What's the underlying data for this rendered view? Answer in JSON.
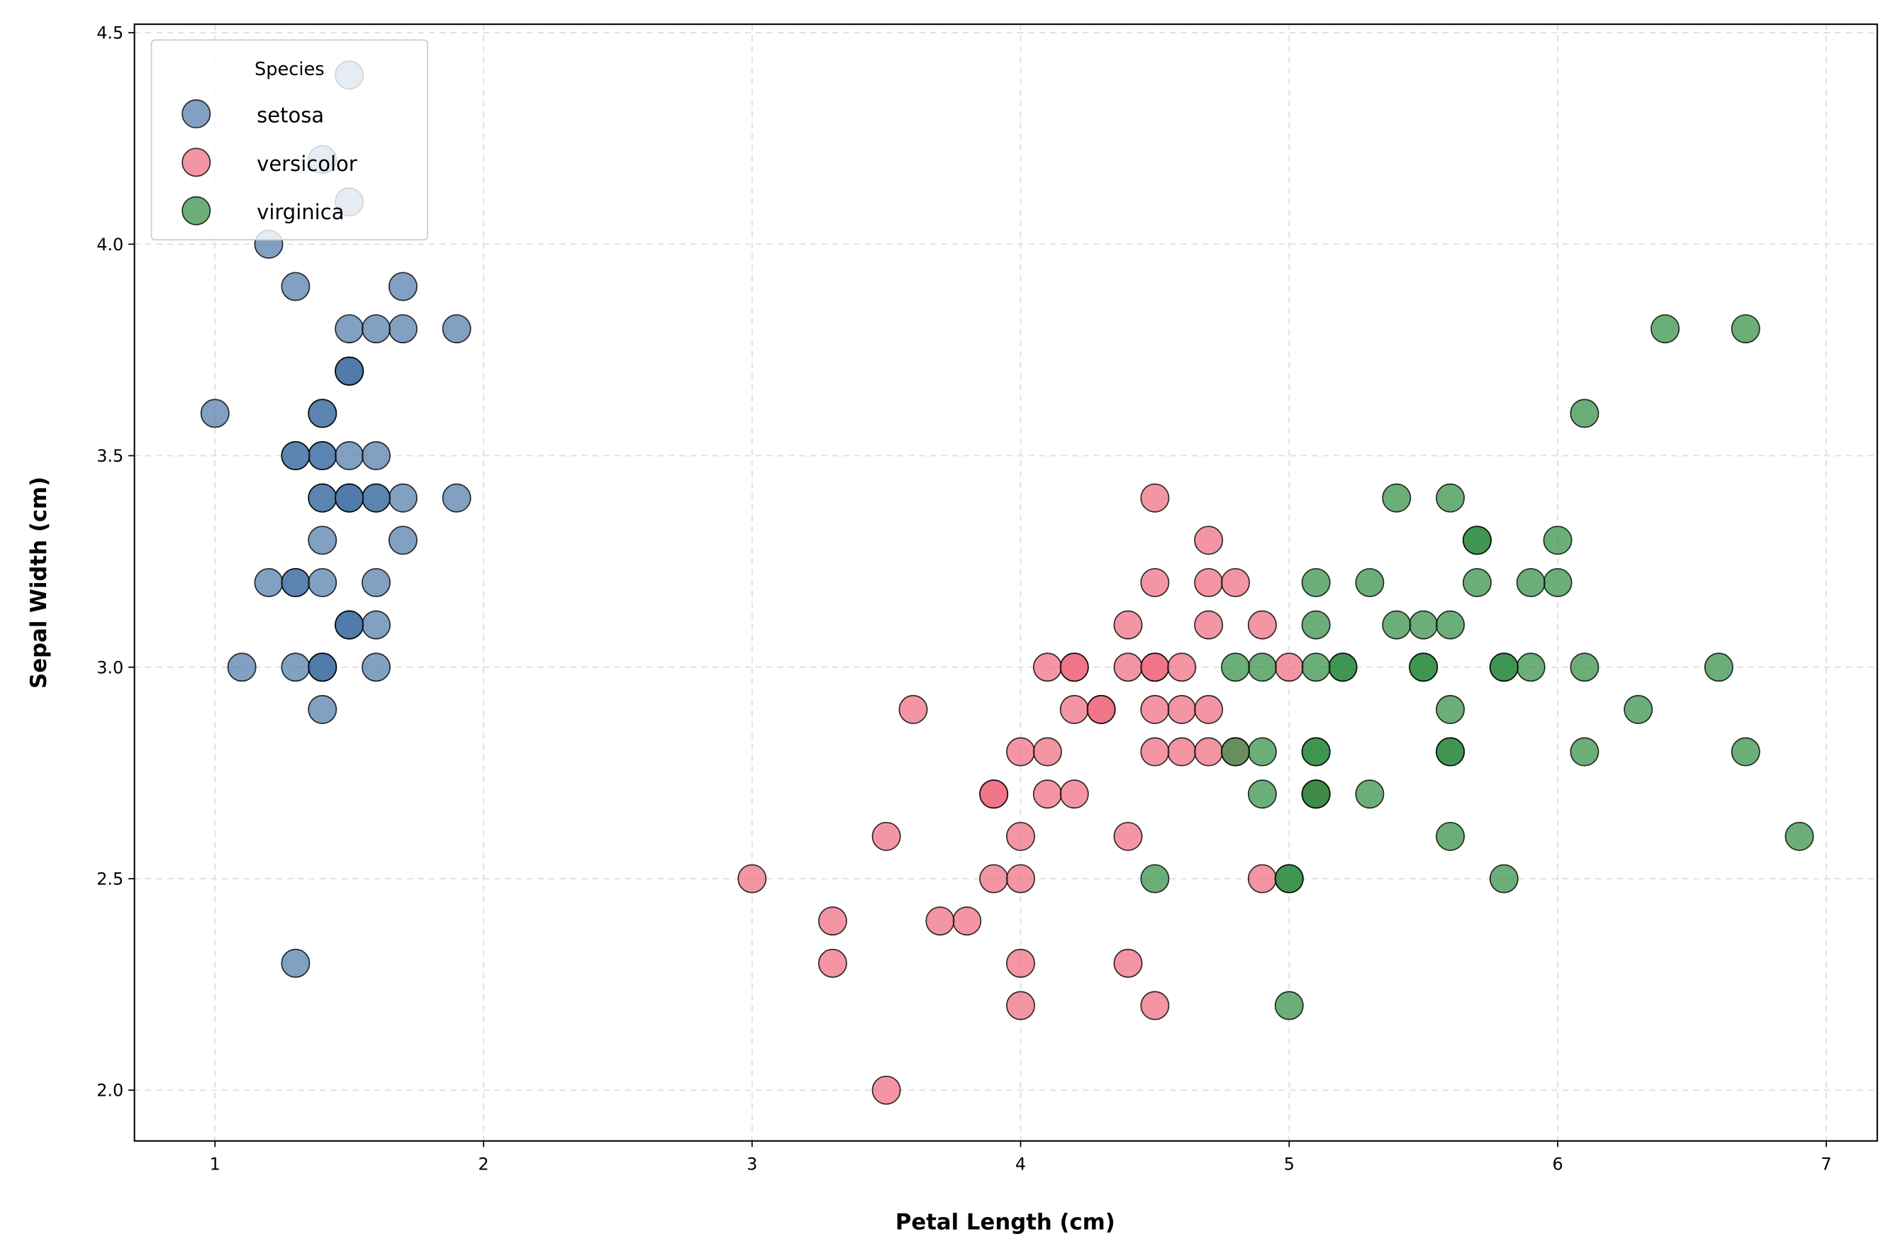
{
  "chart_data": {
    "type": "scatter",
    "title": "",
    "xlabel": "Petal Length (cm)",
    "ylabel": "Sepal Width (cm)",
    "xlim": [
      0.7,
      7.19
    ],
    "ylim": [
      1.88,
      4.52
    ],
    "xticks": [
      1,
      2,
      3,
      4,
      5,
      6,
      7
    ],
    "xtick_labels": [
      "1",
      "2",
      "3",
      "4",
      "5",
      "6",
      "7"
    ],
    "yticks": [
      2.0,
      2.5,
      3.0,
      3.5,
      4.0,
      4.5
    ],
    "ytick_labels": [
      "2.0",
      "2.5",
      "3.0",
      "3.5",
      "4.0",
      "4.5"
    ],
    "grid": true,
    "legend": {
      "title": "Species",
      "placement": "top-left"
    },
    "series": [
      {
        "name": "setosa",
        "color": "#4C78A8",
        "points": [
          [
            1.4,
            3.5
          ],
          [
            1.4,
            3.0
          ],
          [
            1.3,
            3.2
          ],
          [
            1.5,
            3.1
          ],
          [
            1.4,
            3.6
          ],
          [
            1.7,
            3.9
          ],
          [
            1.4,
            3.4
          ],
          [
            1.5,
            3.4
          ],
          [
            1.4,
            2.9
          ],
          [
            1.5,
            3.1
          ],
          [
            1.5,
            3.7
          ],
          [
            1.6,
            3.4
          ],
          [
            1.4,
            3.0
          ],
          [
            1.1,
            3.0
          ],
          [
            1.2,
            4.0
          ],
          [
            1.5,
            4.4
          ],
          [
            1.3,
            3.9
          ],
          [
            1.4,
            3.5
          ],
          [
            1.7,
            3.8
          ],
          [
            1.5,
            3.8
          ],
          [
            1.7,
            3.4
          ],
          [
            1.5,
            3.7
          ],
          [
            1.0,
            3.6
          ],
          [
            1.7,
            3.3
          ],
          [
            1.9,
            3.4
          ],
          [
            1.6,
            3.0
          ],
          [
            1.6,
            3.4
          ],
          [
            1.5,
            3.5
          ],
          [
            1.4,
            3.4
          ],
          [
            1.6,
            3.2
          ],
          [
            1.6,
            3.1
          ],
          [
            1.5,
            3.4
          ],
          [
            1.5,
            4.1
          ],
          [
            1.4,
            4.2
          ],
          [
            1.5,
            3.1
          ],
          [
            1.2,
            3.2
          ],
          [
            1.3,
            3.5
          ],
          [
            1.4,
            3.6
          ],
          [
            1.3,
            3.0
          ],
          [
            1.5,
            3.4
          ],
          [
            1.3,
            3.5
          ],
          [
            1.3,
            2.3
          ],
          [
            1.3,
            3.2
          ],
          [
            1.6,
            3.5
          ],
          [
            1.9,
            3.8
          ],
          [
            1.4,
            3.0
          ],
          [
            1.6,
            3.8
          ],
          [
            1.4,
            3.2
          ],
          [
            1.5,
            3.7
          ],
          [
            1.4,
            3.3
          ]
        ]
      },
      {
        "name": "versicolor",
        "color": "#F0687C",
        "points": [
          [
            4.7,
            3.2
          ],
          [
            4.5,
            3.2
          ],
          [
            4.9,
            3.1
          ],
          [
            4.0,
            2.3
          ],
          [
            4.6,
            2.8
          ],
          [
            4.5,
            2.8
          ],
          [
            4.7,
            3.3
          ],
          [
            3.3,
            2.4
          ],
          [
            4.6,
            2.9
          ],
          [
            3.9,
            2.7
          ],
          [
            3.5,
            2.0
          ],
          [
            4.2,
            3.0
          ],
          [
            4.0,
            2.2
          ],
          [
            4.7,
            2.9
          ],
          [
            3.6,
            2.9
          ],
          [
            4.4,
            3.1
          ],
          [
            4.5,
            3.0
          ],
          [
            4.1,
            2.7
          ],
          [
            4.5,
            2.2
          ],
          [
            3.9,
            2.5
          ],
          [
            4.8,
            3.2
          ],
          [
            4.0,
            2.8
          ],
          [
            4.9,
            2.5
          ],
          [
            4.7,
            2.8
          ],
          [
            4.3,
            2.9
          ],
          [
            4.4,
            3.0
          ],
          [
            4.8,
            2.8
          ],
          [
            5.0,
            3.0
          ],
          [
            4.5,
            2.9
          ],
          [
            3.5,
            2.6
          ],
          [
            3.8,
            2.4
          ],
          [
            3.7,
            2.4
          ],
          [
            3.9,
            2.7
          ],
          [
            5.1,
            2.7
          ],
          [
            4.5,
            3.0
          ],
          [
            4.5,
            3.4
          ],
          [
            4.7,
            3.1
          ],
          [
            4.4,
            2.3
          ],
          [
            4.1,
            3.0
          ],
          [
            4.0,
            2.5
          ],
          [
            4.4,
            2.6
          ],
          [
            4.6,
            3.0
          ],
          [
            4.0,
            2.6
          ],
          [
            3.3,
            2.3
          ],
          [
            4.2,
            2.7
          ],
          [
            4.2,
            3.0
          ],
          [
            4.2,
            2.9
          ],
          [
            4.3,
            2.9
          ],
          [
            3.0,
            2.5
          ],
          [
            4.1,
            2.8
          ]
        ]
      },
      {
        "name": "virginica",
        "color": "#2E8B3E",
        "points": [
          [
            6.0,
            3.3
          ],
          [
            5.1,
            2.7
          ],
          [
            5.9,
            3.0
          ],
          [
            5.6,
            2.9
          ],
          [
            5.8,
            3.0
          ],
          [
            6.6,
            3.0
          ],
          [
            4.5,
            2.5
          ],
          [
            6.3,
            2.9
          ],
          [
            5.8,
            2.5
          ],
          [
            6.1,
            3.6
          ],
          [
            5.1,
            3.2
          ],
          [
            5.3,
            2.7
          ],
          [
            5.5,
            3.0
          ],
          [
            5.0,
            2.5
          ],
          [
            5.1,
            2.8
          ],
          [
            5.3,
            3.2
          ],
          [
            5.5,
            3.0
          ],
          [
            6.7,
            3.8
          ],
          [
            6.9,
            2.6
          ],
          [
            5.0,
            2.2
          ],
          [
            5.7,
            3.2
          ],
          [
            4.9,
            2.8
          ],
          [
            6.7,
            2.8
          ],
          [
            4.9,
            2.7
          ],
          [
            5.7,
            3.3
          ],
          [
            6.0,
            3.2
          ],
          [
            4.8,
            2.8
          ],
          [
            4.9,
            3.0
          ],
          [
            5.6,
            2.8
          ],
          [
            5.8,
            3.0
          ],
          [
            6.1,
            2.8
          ],
          [
            6.4,
            3.8
          ],
          [
            5.6,
            2.8
          ],
          [
            5.1,
            2.8
          ],
          [
            5.6,
            2.6
          ],
          [
            6.1,
            3.0
          ],
          [
            5.6,
            3.4
          ],
          [
            5.5,
            3.1
          ],
          [
            4.8,
            3.0
          ],
          [
            5.4,
            3.1
          ],
          [
            5.6,
            3.1
          ],
          [
            5.1,
            3.1
          ],
          [
            5.1,
            2.7
          ],
          [
            5.9,
            3.2
          ],
          [
            5.7,
            3.3
          ],
          [
            5.2,
            3.0
          ],
          [
            5.0,
            2.5
          ],
          [
            5.2,
            3.0
          ],
          [
            5.4,
            3.4
          ],
          [
            5.1,
            3.0
          ]
        ]
      }
    ]
  }
}
